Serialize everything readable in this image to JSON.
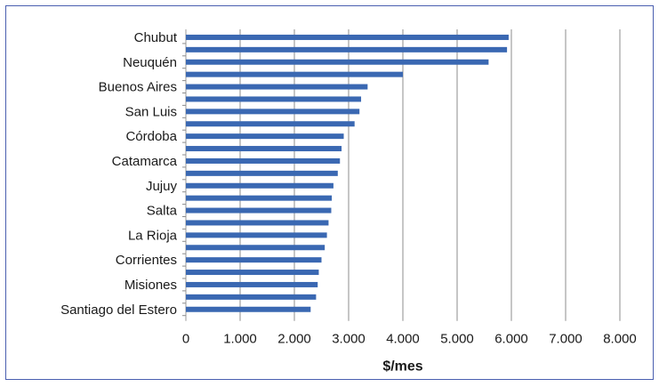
{
  "chart_data": {
    "type": "bar",
    "orientation": "horizontal",
    "xlabel": "$/mes",
    "xlim": [
      0,
      8000
    ],
    "xticks": [
      0,
      1000,
      2000,
      3000,
      4000,
      5000,
      6000,
      7000,
      8000
    ],
    "xtick_labels": [
      "0",
      "1.000",
      "2.000",
      "3.000",
      "4.000",
      "5.000",
      "6.000",
      "7.000",
      "8.000"
    ],
    "grid": "vertical",
    "bar_color": "#3a68b2",
    "category_labels": [
      "Chubut",
      "",
      "Neuquén",
      "",
      "Buenos Aires",
      "",
      "San Luis",
      "",
      "Córdoba",
      "",
      "Catamarca",
      "",
      "Jujuy",
      "",
      "Salta",
      "",
      "La Rioja",
      "",
      "Corrientes",
      "",
      "Misiones",
      "",
      "Santiago del Estero"
    ],
    "values": [
      5950,
      5920,
      5580,
      4000,
      3350,
      3230,
      3200,
      3110,
      2910,
      2870,
      2840,
      2800,
      2720,
      2690,
      2680,
      2630,
      2600,
      2560,
      2500,
      2450,
      2430,
      2400,
      2300
    ]
  }
}
